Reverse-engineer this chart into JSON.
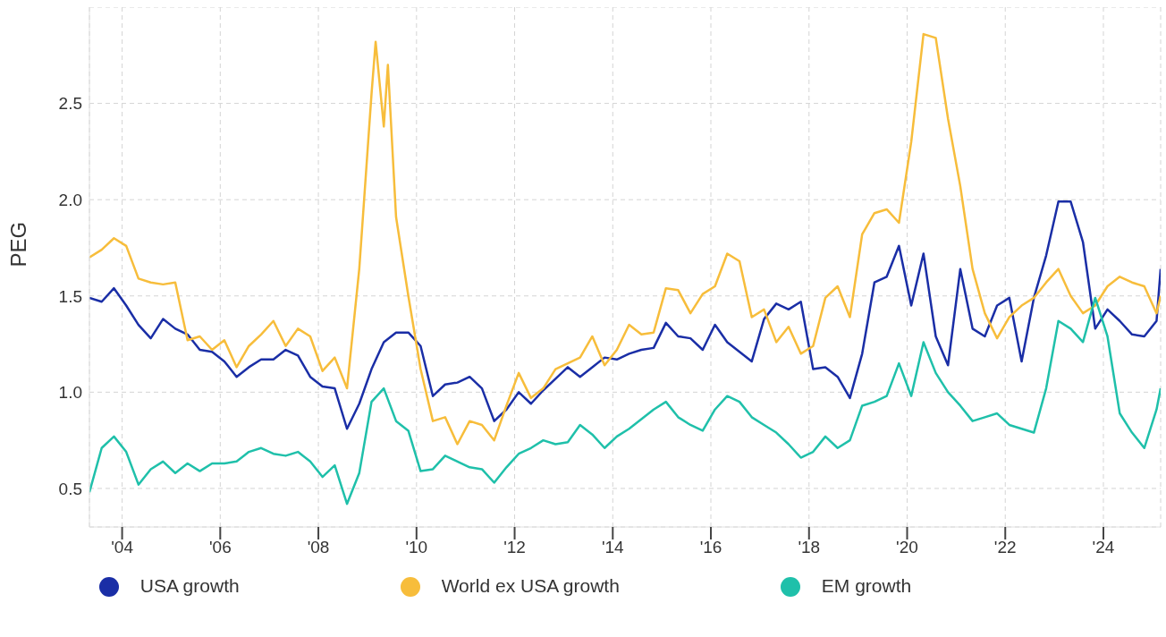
{
  "chart_data": {
    "type": "line",
    "ylabel": "PEG",
    "x": [
      "2003-05",
      "2003-08",
      "2003-11",
      "2004-02",
      "2004-05",
      "2004-08",
      "2004-11",
      "2005-02",
      "2005-05",
      "2005-08",
      "2005-11",
      "2006-02",
      "2006-05",
      "2006-08",
      "2006-11",
      "2007-02",
      "2007-05",
      "2007-08",
      "2007-11",
      "2008-02",
      "2008-05",
      "2008-08",
      "2008-11",
      "2009-02",
      "2009-05",
      "2009-08",
      "2009-11",
      "2010-02",
      "2010-05",
      "2010-08",
      "2010-11",
      "2011-02",
      "2011-05",
      "2011-08",
      "2011-11",
      "2012-02",
      "2012-05",
      "2012-08",
      "2012-11",
      "2013-02",
      "2013-05",
      "2013-08",
      "2013-11",
      "2014-02",
      "2014-05",
      "2014-08",
      "2014-11",
      "2015-02",
      "2015-05",
      "2015-08",
      "2015-11",
      "2016-02",
      "2016-05",
      "2016-08",
      "2016-11",
      "2017-02",
      "2017-05",
      "2017-08",
      "2017-11",
      "2018-02",
      "2018-05",
      "2018-08",
      "2018-11",
      "2019-02",
      "2019-05",
      "2019-08",
      "2019-11",
      "2020-02",
      "2020-05",
      "2020-08",
      "2020-11",
      "2021-02",
      "2021-05",
      "2021-08",
      "2021-11",
      "2022-02",
      "2022-05",
      "2022-08",
      "2022-11",
      "2023-02",
      "2023-05",
      "2023-08",
      "2023-11",
      "2024-02",
      "2024-05",
      "2024-08",
      "2024-11",
      "2025-02",
      "2025-03"
    ],
    "series": [
      {
        "name": "USA growth",
        "color": "#1a2ea6",
        "values": [
          1.49,
          1.47,
          1.54,
          1.45,
          1.35,
          1.28,
          1.38,
          1.33,
          1.3,
          1.22,
          1.21,
          1.16,
          1.08,
          1.13,
          1.17,
          1.17,
          1.22,
          1.19,
          1.08,
          1.03,
          1.02,
          0.81,
          0.94,
          1.12,
          1.26,
          1.31,
          1.31,
          1.24,
          0.98,
          1.04,
          1.05,
          1.08,
          1.02,
          0.85,
          0.91,
          1.0,
          0.94,
          1.01,
          1.07,
          1.13,
          1.08,
          1.13,
          1.18,
          1.17,
          1.2,
          1.22,
          1.23,
          1.36,
          1.29,
          1.28,
          1.22,
          1.35,
          1.26,
          1.21,
          1.16,
          1.38,
          1.46,
          1.43,
          1.47,
          1.12,
          1.13,
          1.08,
          0.97,
          1.2,
          1.57,
          1.6,
          1.76,
          1.45,
          1.72,
          1.29,
          1.14,
          1.64,
          1.33,
          1.29,
          1.45,
          1.49,
          1.16,
          1.49,
          1.71,
          1.99,
          1.99,
          1.78,
          1.33,
          1.43,
          1.37,
          1.3,
          1.29,
          1.37,
          1.64
        ]
      },
      {
        "name": "World ex USA growth",
        "color": "#f7bd3b",
        "x": [
          "2003-05",
          "2003-08",
          "2003-11",
          "2004-02",
          "2004-05",
          "2004-08",
          "2004-11",
          "2005-02",
          "2005-05",
          "2005-08",
          "2005-11",
          "2006-02",
          "2006-05",
          "2006-08",
          "2006-11",
          "2007-02",
          "2007-05",
          "2007-08",
          "2007-11",
          "2008-02",
          "2008-05",
          "2008-08",
          "2008-11",
          "2009-02",
          "2009-03",
          "2009-05",
          "2009-06",
          "2009-08",
          "2009-11",
          "2010-02",
          "2010-05",
          "2010-08",
          "2010-11",
          "2011-02",
          "2011-05",
          "2011-08",
          "2011-11",
          "2012-02",
          "2012-05",
          "2012-08",
          "2012-11",
          "2013-02",
          "2013-05",
          "2013-08",
          "2013-11",
          "2014-02",
          "2014-05",
          "2014-08",
          "2014-11",
          "2015-02",
          "2015-05",
          "2015-08",
          "2015-11",
          "2016-02",
          "2016-05",
          "2016-08",
          "2016-11",
          "2017-02",
          "2017-05",
          "2017-08",
          "2017-11",
          "2018-02",
          "2018-05",
          "2018-08",
          "2018-11",
          "2019-02",
          "2019-05",
          "2019-08",
          "2019-11",
          "2020-02",
          "2020-05",
          "2020-08",
          "2020-11",
          "2021-02",
          "2021-05",
          "2021-08",
          "2021-11",
          "2022-02",
          "2022-05",
          "2022-08",
          "2022-11",
          "2023-02",
          "2023-05",
          "2023-08",
          "2023-11",
          "2024-02",
          "2024-05",
          "2024-08",
          "2024-11",
          "2025-02",
          "2025-03"
        ],
        "values": [
          1.7,
          1.74,
          1.8,
          1.76,
          1.59,
          1.57,
          1.56,
          1.57,
          1.27,
          1.29,
          1.22,
          1.27,
          1.13,
          1.24,
          1.3,
          1.37,
          1.24,
          1.33,
          1.29,
          1.11,
          1.18,
          1.02,
          1.64,
          2.55,
          2.82,
          2.38,
          2.7,
          1.91,
          1.5,
          1.12,
          0.85,
          0.87,
          0.73,
          0.85,
          0.83,
          0.75,
          0.93,
          1.1,
          0.97,
          1.02,
          1.12,
          1.15,
          1.18,
          1.29,
          1.14,
          1.22,
          1.35,
          1.3,
          1.31,
          1.54,
          1.53,
          1.41,
          1.51,
          1.55,
          1.72,
          1.68,
          1.39,
          1.43,
          1.26,
          1.34,
          1.2,
          1.24,
          1.49,
          1.55,
          1.39,
          1.82,
          1.93,
          1.95,
          1.88,
          2.3,
          2.86,
          2.84,
          2.42,
          2.07,
          1.64,
          1.41,
          1.28,
          1.39,
          1.45,
          1.49,
          1.57,
          1.64,
          1.5,
          1.41,
          1.45,
          1.55,
          1.6,
          1.57,
          1.55,
          1.41,
          1.5
        ]
      },
      {
        "name": "EM growth",
        "color": "#1fc0aa",
        "values": [
          0.48,
          0.71,
          0.77,
          0.69,
          0.52,
          0.6,
          0.64,
          0.58,
          0.63,
          0.59,
          0.63,
          0.63,
          0.64,
          0.69,
          0.71,
          0.68,
          0.67,
          0.69,
          0.64,
          0.56,
          0.62,
          0.42,
          0.58,
          0.95,
          1.02,
          0.85,
          0.8,
          0.59,
          0.6,
          0.67,
          0.64,
          0.61,
          0.6,
          0.53,
          0.61,
          0.68,
          0.71,
          0.75,
          0.73,
          0.74,
          0.83,
          0.78,
          0.71,
          0.77,
          0.81,
          0.86,
          0.91,
          0.95,
          0.87,
          0.83,
          0.8,
          0.91,
          0.98,
          0.95,
          0.87,
          0.83,
          0.79,
          0.73,
          0.66,
          0.69,
          0.77,
          0.71,
          0.75,
          0.93,
          0.95,
          0.98,
          1.15,
          0.98,
          1.26,
          1.1,
          1.0,
          0.93,
          0.85,
          0.87,
          0.89,
          0.83,
          0.81,
          0.79,
          1.02,
          1.37,
          1.33,
          1.26,
          1.49,
          1.29,
          0.89,
          0.79,
          0.71,
          0.91,
          1.02
        ]
      }
    ],
    "xlim": [
      "2003-05",
      "2025-03"
    ],
    "xticks": [
      {
        "value": "2004",
        "label": "'04"
      },
      {
        "value": "2006",
        "label": "'06"
      },
      {
        "value": "2008",
        "label": "'08"
      },
      {
        "value": "2010",
        "label": "'10"
      },
      {
        "value": "2012",
        "label": "'12"
      },
      {
        "value": "2014",
        "label": "'14"
      },
      {
        "value": "2016",
        "label": "'16"
      },
      {
        "value": "2018",
        "label": "'18"
      },
      {
        "value": "2020",
        "label": "'20"
      },
      {
        "value": "2022",
        "label": "'22"
      },
      {
        "value": "2024",
        "label": "'24"
      }
    ],
    "ylim": [
      0.3,
      3.0
    ],
    "yticks": [
      0.5,
      {
        "value": 1,
        "label": "1.0"
      },
      1.5,
      {
        "value": 2,
        "label": "2.0"
      },
      2.5
    ],
    "grid": true,
    "legend": "bottom",
    "marker": "none"
  }
}
